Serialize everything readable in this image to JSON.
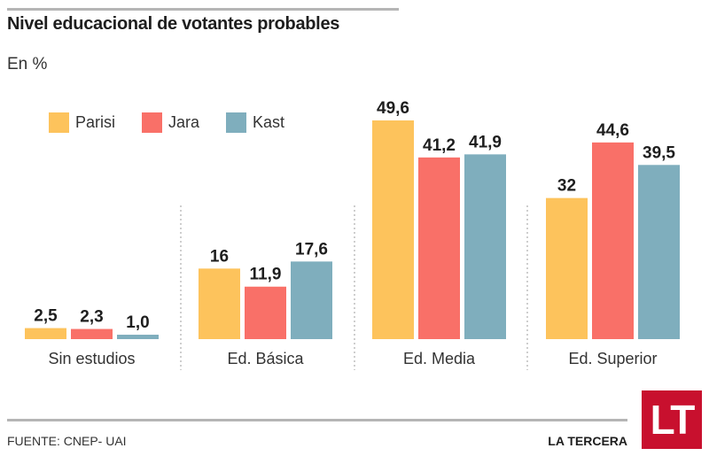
{
  "header": {
    "title": "Nivel educacional de votantes probables",
    "subtitle": "En %"
  },
  "footer": {
    "source": "FUENTE: CNEP- UAI",
    "brand": "LA TERCERA",
    "logo_text": "LT",
    "logo_color": "#c8102e"
  },
  "chart_data": {
    "type": "bar",
    "title": "Nivel educacional de votantes probables",
    "subtitle": "En %",
    "xlabel": "",
    "ylabel": "",
    "ylim": [
      0,
      50
    ],
    "grid": false,
    "legend_position": "top-left",
    "categories": [
      "Sin estudios",
      "Ed. Básica",
      "Ed. Media",
      "Ed. Superior"
    ],
    "series": [
      {
        "name": "Parisi",
        "color": "#fdc35c",
        "values": [
          2.5,
          16,
          49.6,
          32
        ],
        "labels": [
          "2,5",
          "16",
          "49,6",
          "32"
        ]
      },
      {
        "name": "Jara",
        "color": "#f97068",
        "values": [
          2.3,
          11.9,
          41.2,
          44.6
        ],
        "labels": [
          "2,3",
          "11,9",
          "41,2",
          "44,6"
        ]
      },
      {
        "name": "Kast",
        "color": "#7faebd",
        "values": [
          1.0,
          17.6,
          41.9,
          39.5
        ],
        "labels": [
          "1,0",
          "17,6",
          "41,9",
          "39,5"
        ]
      }
    ]
  }
}
